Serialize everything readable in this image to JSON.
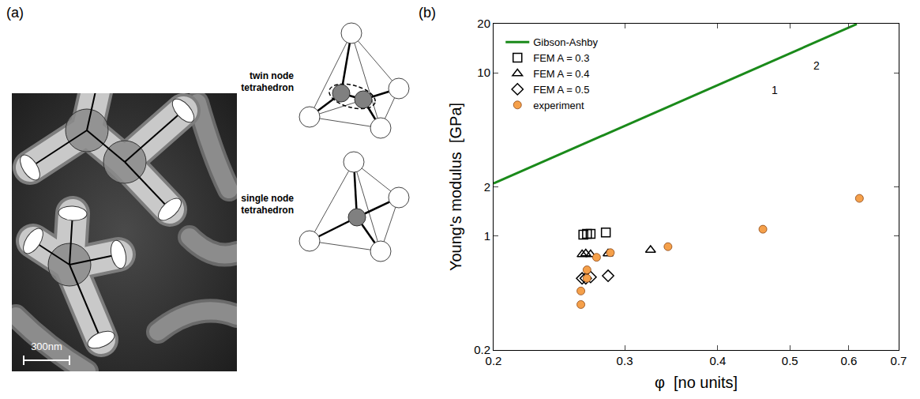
{
  "panel_a": {
    "label": "(a)",
    "scale_bar": "300nm",
    "diagram_labels": [
      "twin node tetrahedron",
      "single node tetrahedron"
    ]
  },
  "chart_data": {
    "type": "scatter",
    "panel_label": "(b)",
    "x_label": "φ  [no units]",
    "y_label": "Young's modulus  [GPa]",
    "log": true,
    "xlim": [
      0.2,
      0.7
    ],
    "ylim": [
      0.2,
      20
    ],
    "xticks": [
      0.2,
      0.3,
      0.4,
      0.5,
      0.6,
      0.7
    ],
    "yticks": [
      0.2,
      1,
      2,
      10,
      20
    ],
    "legend": "upper left",
    "annotations": [
      "1",
      "2"
    ],
    "series": [
      {
        "name": "Gibson-Ashby",
        "type": "line",
        "line_style": "solid",
        "color": "#1a8a1a",
        "x": [
          0.2,
          0.615
        ],
        "values": [
          2.1,
          19.9
        ]
      },
      {
        "name": "FEM A = 0.3",
        "type": "scatter",
        "marker": "square-open",
        "color": "#000000",
        "x": [
          0.264,
          0.267,
          0.27,
          0.283
        ],
        "values": [
          1.02,
          1.03,
          1.03,
          1.05
        ]
      },
      {
        "name": "FEM A = 0.4",
        "type": "scatter",
        "marker": "triangle-up-open",
        "color": "#000000",
        "x": [
          0.263,
          0.266,
          0.27,
          0.285,
          0.325
        ],
        "values": [
          0.77,
          0.78,
          0.77,
          0.78,
          0.82
        ]
      },
      {
        "name": "FEM A = 0.5",
        "type": "scatter",
        "marker": "diamond-open",
        "color": "#000000",
        "x": [
          0.263,
          0.266,
          0.27,
          0.285
        ],
        "values": [
          0.55,
          0.55,
          0.56,
          0.57
        ]
      },
      {
        "name": "experiment",
        "type": "scatter",
        "marker": "circle",
        "color": "#f5a04a",
        "x": [
          0.262,
          0.262,
          0.267,
          0.267,
          0.275,
          0.287,
          0.343,
          0.46,
          0.62
        ],
        "values": [
          0.38,
          0.46,
          0.55,
          0.62,
          0.74,
          0.79,
          0.86,
          1.1,
          1.7
        ]
      }
    ]
  }
}
